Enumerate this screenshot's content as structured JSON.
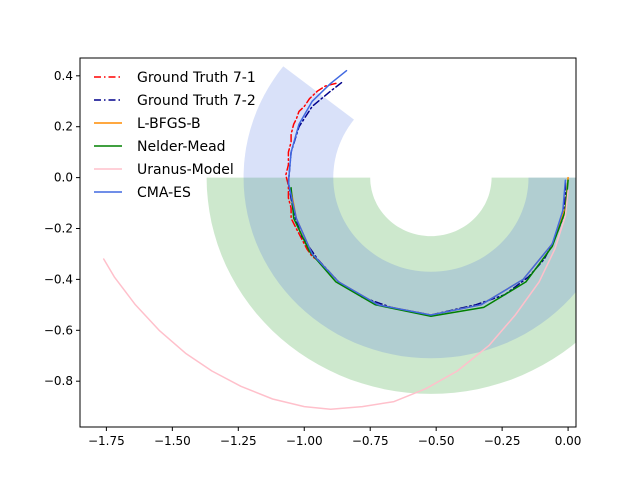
{
  "chart_data": {
    "type": "line",
    "title": "",
    "xlabel": "",
    "ylabel": "",
    "xlim": [
      -1.85,
      0.03
    ],
    "ylim": [
      -0.98,
      0.47
    ],
    "x_ticks": [
      -1.75,
      -1.5,
      -1.25,
      -1.0,
      -0.75,
      -0.5,
      -0.25,
      0.0
    ],
    "x_tick_labels": [
      "−1.75",
      "−1.50",
      "−1.25",
      "−1.00",
      "−0.75",
      "−0.50",
      "−0.25",
      "0.00"
    ],
    "y_ticks": [
      0.4,
      0.2,
      0.0,
      -0.2,
      -0.4,
      -0.6,
      -0.8
    ],
    "y_tick_labels": [
      "0.4",
      "0.2",
      "0.0",
      "−0.2",
      "−0.4",
      "−0.6",
      "−0.8"
    ],
    "grid": false,
    "legend_position": "top-left",
    "bands": [
      {
        "center": [
          -0.52,
          0.0
        ],
        "radius": 0.54,
        "halfwidth": 0.31,
        "theta_deg": [
          0,
          -180
        ],
        "color": "#2ca02c",
        "alpha": 0.24
      },
      {
        "center": [
          -0.52,
          0.0
        ],
        "radius": 0.54,
        "halfwidth": 0.17,
        "theta_deg": [
          0,
          -180
        ],
        "color": "#4169e1",
        "alpha": 0.2
      },
      {
        "center": [
          -0.52,
          0.0
        ],
        "radius": 0.54,
        "halfwidth": 0.17,
        "theta_deg": [
          -180,
          -218
        ],
        "color": "#4169e1",
        "alpha": 0.2
      }
    ],
    "series": [
      {
        "name": "Ground Truth 7-1",
        "color": "#ff0000",
        "style": "dashdot",
        "points": [
          [
            -0.88,
            0.37
          ],
          [
            -0.92,
            0.36
          ],
          [
            -0.95,
            0.34
          ],
          [
            -0.98,
            0.31
          ],
          [
            -1.0,
            0.28
          ],
          [
            -1.02,
            0.26
          ],
          [
            -1.03,
            0.23
          ],
          [
            -1.04,
            0.21
          ],
          [
            -1.05,
            0.17
          ],
          [
            -1.05,
            0.14
          ],
          [
            -1.06,
            0.1
          ],
          [
            -1.06,
            0.05
          ],
          [
            -1.07,
            0.01
          ],
          [
            -1.06,
            -0.03
          ],
          [
            -1.06,
            -0.08
          ],
          [
            -1.05,
            -0.12
          ],
          [
            -1.05,
            -0.16
          ],
          [
            -1.03,
            -0.2
          ],
          [
            -1.01,
            -0.24
          ],
          [
            -0.99,
            -0.28
          ],
          [
            -0.97,
            -0.31
          ],
          [
            -0.94,
            -0.33
          ]
        ]
      },
      {
        "name": "Ground Truth 7-2",
        "color": "#00008b",
        "style": "dashdot",
        "points": [
          [
            -0.01,
            -0.02
          ],
          [
            -0.01,
            -0.08
          ],
          [
            -0.02,
            -0.16
          ],
          [
            -0.05,
            -0.24
          ],
          [
            -0.09,
            -0.32
          ],
          [
            -0.15,
            -0.39
          ],
          [
            -0.24,
            -0.46
          ],
          [
            -0.35,
            -0.5
          ],
          [
            -0.52,
            -0.54
          ],
          [
            -0.67,
            -0.51
          ],
          [
            -0.78,
            -0.47
          ],
          [
            -0.87,
            -0.41
          ],
          [
            -0.95,
            -0.32
          ],
          [
            -1.01,
            -0.23
          ],
          [
            -1.04,
            -0.14
          ],
          [
            -1.06,
            -0.02
          ],
          [
            -1.05,
            0.1
          ],
          [
            -1.02,
            0.2
          ],
          [
            -0.97,
            0.28
          ],
          [
            -0.9,
            0.34
          ],
          [
            -0.85,
            0.38
          ]
        ]
      },
      {
        "name": "L-BFGS-B",
        "color": "#ff8c00",
        "style": "solid",
        "points": [
          [
            -1.05,
            -0.05
          ],
          [
            -1.03,
            -0.16
          ],
          [
            -0.97,
            -0.3
          ],
          [
            -0.87,
            -0.41
          ],
          [
            -0.72,
            -0.5
          ],
          [
            -0.52,
            -0.54
          ],
          [
            -0.33,
            -0.5
          ],
          [
            -0.17,
            -0.4
          ],
          [
            -0.06,
            -0.26
          ],
          [
            -0.01,
            -0.12
          ],
          [
            0.0,
            0.0
          ]
        ]
      },
      {
        "name": "Nelder-Mead",
        "color": "#008000",
        "style": "solid",
        "points": [
          [
            -1.05,
            -0.04
          ],
          [
            -1.04,
            -0.16
          ],
          [
            -0.98,
            -0.29
          ],
          [
            -0.88,
            -0.41
          ],
          [
            -0.73,
            -0.5
          ],
          [
            -0.52,
            -0.545
          ],
          [
            -0.32,
            -0.51
          ],
          [
            -0.16,
            -0.41
          ],
          [
            -0.06,
            -0.27
          ],
          [
            -0.01,
            -0.13
          ],
          [
            0.0,
            -0.01
          ]
        ]
      },
      {
        "name": "Uranus-Model",
        "color": "#ffc0cb",
        "style": "solid",
        "points": [
          [
            -1.76,
            -0.32
          ],
          [
            -1.72,
            -0.39
          ],
          [
            -1.64,
            -0.5
          ],
          [
            -1.55,
            -0.6
          ],
          [
            -1.45,
            -0.69
          ],
          [
            -1.35,
            -0.76
          ],
          [
            -1.24,
            -0.82
          ],
          [
            -1.12,
            -0.87
          ],
          [
            -1.0,
            -0.9
          ],
          [
            -0.9,
            -0.91
          ],
          [
            -0.78,
            -0.9
          ],
          [
            -0.66,
            -0.88
          ],
          [
            -0.54,
            -0.83
          ],
          [
            -0.42,
            -0.76
          ],
          [
            -0.3,
            -0.66
          ],
          [
            -0.2,
            -0.54
          ],
          [
            -0.11,
            -0.41
          ],
          [
            -0.05,
            -0.28
          ],
          [
            -0.01,
            -0.15
          ],
          [
            0.0,
            -0.05
          ]
        ]
      },
      {
        "name": "CMA-ES",
        "color": "#4169e1",
        "style": "solid",
        "points": [
          [
            -0.01,
            -0.01
          ],
          [
            -0.02,
            -0.13
          ],
          [
            -0.06,
            -0.26
          ],
          [
            -0.17,
            -0.4
          ],
          [
            -0.33,
            -0.5
          ],
          [
            -0.52,
            -0.54
          ],
          [
            -0.72,
            -0.5
          ],
          [
            -0.87,
            -0.41
          ],
          [
            -0.97,
            -0.3
          ],
          [
            -1.03,
            -0.16
          ],
          [
            -1.06,
            -0.02
          ],
          [
            -1.05,
            0.1
          ],
          [
            -1.02,
            0.21
          ],
          [
            -0.97,
            0.3
          ],
          [
            -0.9,
            0.37
          ],
          [
            -0.84,
            0.42
          ]
        ]
      }
    ]
  }
}
